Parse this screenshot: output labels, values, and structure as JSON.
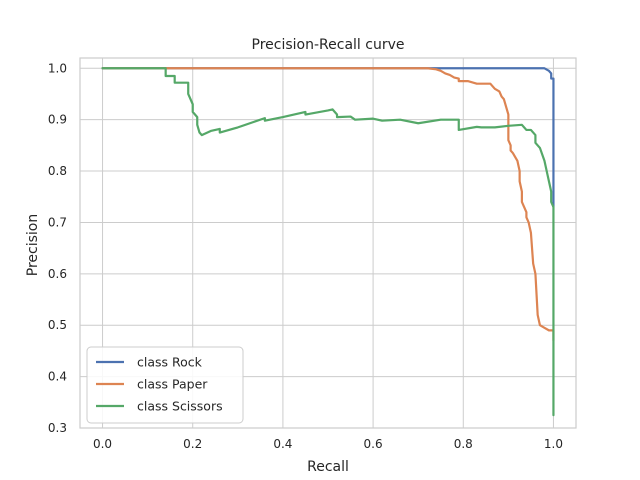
{
  "chart_data": {
    "type": "line",
    "title": "Precision-Recall curve",
    "xlabel": "Recall",
    "ylabel": "Precision",
    "xlim": [
      -0.05,
      1.05
    ],
    "ylim": [
      0.3,
      1.02
    ],
    "grid": true,
    "legend_position": "lower-left",
    "x_ticks": [
      {
        "value": 0.0,
        "label": "0.0"
      },
      {
        "value": 0.2,
        "label": "0.2"
      },
      {
        "value": 0.4,
        "label": "0.4"
      },
      {
        "value": 0.6,
        "label": "0.6"
      },
      {
        "value": 0.8,
        "label": "0.8"
      },
      {
        "value": 1.0,
        "label": "1.0"
      }
    ],
    "y_ticks": [
      {
        "value": 0.3,
        "label": "0.3"
      },
      {
        "value": 0.4,
        "label": "0.4"
      },
      {
        "value": 0.5,
        "label": "0.5"
      },
      {
        "value": 0.6,
        "label": "0.6"
      },
      {
        "value": 0.7,
        "label": "0.7"
      },
      {
        "value": 0.8,
        "label": "0.8"
      },
      {
        "value": 0.9,
        "label": "0.9"
      },
      {
        "value": 1.0,
        "label": "1.0"
      }
    ],
    "series": [
      {
        "name": "class Rock",
        "color": "#4c72b0",
        "x": [
          0.0,
          0.97,
          0.98,
          0.99,
          0.995,
          0.995,
          1.0,
          1.0,
          1.0
        ],
        "y": [
          1.0,
          1.0,
          1.0,
          0.995,
          0.99,
          0.98,
          0.98,
          0.75,
          0.73
        ]
      },
      {
        "name": "class Paper",
        "color": "#dd8452",
        "x": [
          0.0,
          0.72,
          0.74,
          0.75,
          0.76,
          0.77,
          0.78,
          0.79,
          0.79,
          0.81,
          0.83,
          0.84,
          0.85,
          0.86,
          0.87,
          0.88,
          0.885,
          0.89,
          0.895,
          0.9,
          0.9,
          0.905,
          0.905,
          0.91,
          0.92,
          0.925,
          0.925,
          0.93,
          0.93,
          0.935,
          0.94,
          0.94,
          0.945,
          0.95,
          0.955,
          0.96,
          0.965,
          0.97,
          0.98,
          0.99,
          1.0,
          1.0,
          1.0
        ],
        "y": [
          1.0,
          1.0,
          0.998,
          0.995,
          0.99,
          0.987,
          0.982,
          0.98,
          0.975,
          0.975,
          0.97,
          0.97,
          0.97,
          0.97,
          0.96,
          0.955,
          0.945,
          0.94,
          0.925,
          0.91,
          0.86,
          0.85,
          0.84,
          0.835,
          0.82,
          0.8,
          0.78,
          0.76,
          0.74,
          0.73,
          0.72,
          0.71,
          0.7,
          0.68,
          0.62,
          0.6,
          0.52,
          0.5,
          0.495,
          0.49,
          0.49,
          0.47,
          0.48
        ]
      },
      {
        "name": "class Scissors",
        "color": "#55a868",
        "x": [
          0.0,
          0.14,
          0.14,
          0.16,
          0.16,
          0.19,
          0.19,
          0.2,
          0.2,
          0.205,
          0.21,
          0.21,
          0.215,
          0.22,
          0.24,
          0.26,
          0.26,
          0.3,
          0.36,
          0.36,
          0.4,
          0.45,
          0.45,
          0.5,
          0.51,
          0.52,
          0.52,
          0.55,
          0.56,
          0.6,
          0.62,
          0.66,
          0.7,
          0.75,
          0.78,
          0.79,
          0.79,
          0.83,
          0.84,
          0.84,
          0.87,
          0.9,
          0.93,
          0.94,
          0.95,
          0.96,
          0.96,
          0.97,
          0.98,
          0.985,
          0.99,
          0.995,
          0.995,
          1.0,
          1.0,
          1.0
        ],
        "y": [
          1.0,
          1.0,
          0.985,
          0.985,
          0.972,
          0.972,
          0.95,
          0.93,
          0.915,
          0.91,
          0.905,
          0.89,
          0.875,
          0.87,
          0.878,
          0.882,
          0.875,
          0.885,
          0.903,
          0.898,
          0.905,
          0.915,
          0.91,
          0.918,
          0.92,
          0.91,
          0.905,
          0.906,
          0.9,
          0.902,
          0.898,
          0.9,
          0.893,
          0.9,
          0.9,
          0.9,
          0.88,
          0.886,
          0.885,
          0.885,
          0.885,
          0.888,
          0.89,
          0.88,
          0.88,
          0.87,
          0.855,
          0.845,
          0.82,
          0.8,
          0.78,
          0.76,
          0.74,
          0.73,
          0.72,
          0.325
        ]
      }
    ]
  }
}
